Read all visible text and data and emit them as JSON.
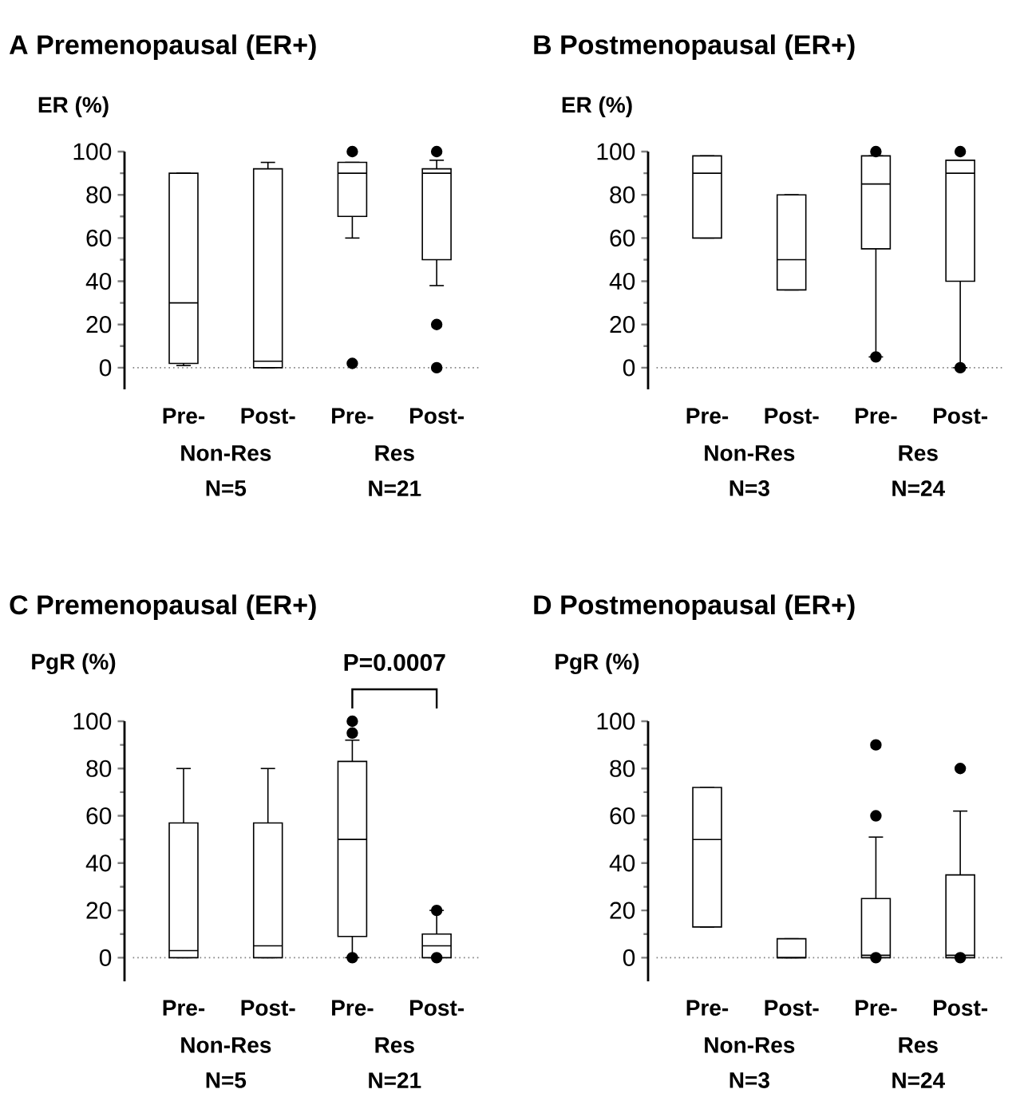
{
  "chart_data": [
    {
      "type": "box",
      "title": "A Premenopausal (ER+)",
      "ylabel": "ER (%)",
      "categories": [
        "Pre-",
        "Post-",
        "Pre-",
        "Post-"
      ],
      "boxes": [
        {
          "low": 1,
          "q1": 2,
          "median": 30,
          "q3": 90,
          "high": 90
        },
        {
          "low": 0,
          "q1": 0,
          "median": 3,
          "q3": 92,
          "high": 95
        },
        {
          "low": 60,
          "q1": 70,
          "median": 90,
          "q3": 95,
          "high": 95,
          "outliers": [
            100,
            2
          ]
        },
        {
          "low": 38,
          "q1": 50,
          "median": 90,
          "q3": 92,
          "high": 96,
          "outliers": [
            100,
            20,
            0
          ]
        }
      ],
      "ylim": [
        -10,
        100
      ],
      "yticks": [
        0,
        20,
        40,
        60,
        80,
        100
      ],
      "ref_lines": [
        {
          "axis": "y",
          "value": 0,
          "line_style": "dotted"
        }
      ],
      "annotations": [
        "Non-Res",
        "N=5",
        "Res",
        "N=21"
      ]
    },
    {
      "type": "box",
      "title": "B Postmenopausal (ER+)",
      "ylabel": "ER (%)",
      "categories": [
        "Pre-",
        "Post-",
        "Pre-",
        "Post-"
      ],
      "boxes": [
        {
          "low": 60,
          "q1": 60,
          "median": 90,
          "q3": 98,
          "high": 98
        },
        {
          "low": 36,
          "q1": 36,
          "median": 50,
          "q3": 80,
          "high": 80
        },
        {
          "low": 5,
          "q1": 55,
          "median": 85,
          "q3": 98,
          "high": 98,
          "outliers": [
            100,
            5
          ]
        },
        {
          "low": 0,
          "q1": 40,
          "median": 90,
          "q3": 96,
          "high": 96,
          "outliers": [
            100,
            0
          ]
        }
      ],
      "ylim": [
        -10,
        100
      ],
      "yticks": [
        0,
        20,
        40,
        60,
        80,
        100
      ],
      "ref_lines": [
        {
          "axis": "y",
          "value": 0,
          "line_style": "dotted"
        }
      ],
      "annotations": [
        "Non-Res",
        "N=3",
        "Res",
        "N=24"
      ]
    },
    {
      "type": "box",
      "title": "C Premenopausal (ER+)",
      "ylabel": "PgR (%)",
      "categories": [
        "Pre-",
        "Post-",
        "Pre-",
        "Post-"
      ],
      "boxes": [
        {
          "low": 0,
          "q1": 0,
          "median": 3,
          "q3": 57,
          "high": 80
        },
        {
          "low": 0,
          "q1": 0,
          "median": 5,
          "q3": 57,
          "high": 80
        },
        {
          "low": 0,
          "q1": 9,
          "median": 50,
          "q3": 83,
          "high": 92,
          "outliers": [
            100,
            95,
            0
          ]
        },
        {
          "low": 0,
          "q1": 0,
          "median": 5,
          "q3": 10,
          "high": 20,
          "outliers": [
            20,
            0
          ]
        }
      ],
      "ylim": [
        -10,
        100
      ],
      "yticks": [
        0,
        20,
        40,
        60,
        80,
        100
      ],
      "ref_lines": [
        {
          "axis": "y",
          "value": 0,
          "line_style": "dotted"
        }
      ],
      "annotations": [
        "Non-Res",
        "N=5",
        "Res",
        "N=21",
        "P=0.0007"
      ]
    },
    {
      "type": "box",
      "title": "D Postmenopausal (ER+)",
      "ylabel": "PgR (%)",
      "categories": [
        "Pre-",
        "Post-",
        "Pre-",
        "Post-"
      ],
      "boxes": [
        {
          "low": 13,
          "q1": 13,
          "median": 50,
          "q3": 72,
          "high": 72
        },
        {
          "low": 0,
          "q1": 0,
          "median": 0,
          "q3": 8,
          "high": 8
        },
        {
          "low": 0,
          "q1": 0,
          "median": 1,
          "q3": 25,
          "high": 51,
          "outliers": [
            90,
            60,
            0
          ]
        },
        {
          "low": 0,
          "q1": 0,
          "median": 1,
          "q3": 35,
          "high": 62,
          "outliers": [
            80,
            0
          ]
        }
      ],
      "ylim": [
        -10,
        100
      ],
      "yticks": [
        0,
        20,
        40,
        60,
        80,
        100
      ],
      "ref_lines": [
        {
          "axis": "y",
          "value": 0,
          "line_style": "dotted"
        }
      ],
      "annotations": [
        "Non-Res",
        "N=3",
        "Res",
        "N=24"
      ]
    }
  ]
}
